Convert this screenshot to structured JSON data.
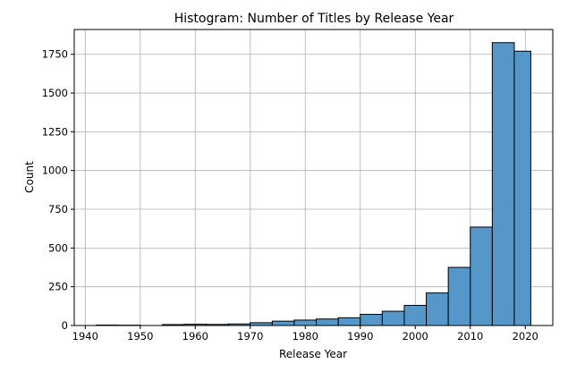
{
  "chart_data": {
    "type": "bar",
    "title": "Histogram: Number of Titles by Release Year",
    "xlabel": "Release Year",
    "ylabel": "Count",
    "xlim": [
      1938,
      2025
    ],
    "ylim": [
      0,
      1910
    ],
    "xticks": [
      1940,
      1950,
      1960,
      1970,
      1980,
      1990,
      2000,
      2010,
      2020
    ],
    "yticks": [
      0,
      250,
      500,
      750,
      1000,
      1250,
      1500,
      1750
    ],
    "grid": true,
    "bar_color": "#5497c8",
    "bins": [
      {
        "start": 1942.0,
        "end": 1946.0,
        "value": 3
      },
      {
        "start": 1946.0,
        "end": 1950.0,
        "value": 2
      },
      {
        "start": 1950.0,
        "end": 1954.0,
        "value": 0
      },
      {
        "start": 1954.0,
        "end": 1958.0,
        "value": 6
      },
      {
        "start": 1958.0,
        "end": 1962.0,
        "value": 8
      },
      {
        "start": 1962.0,
        "end": 1966.0,
        "value": 7
      },
      {
        "start": 1966.0,
        "end": 1970.0,
        "value": 10
      },
      {
        "start": 1970.0,
        "end": 1974.0,
        "value": 18
      },
      {
        "start": 1974.0,
        "end": 1978.0,
        "value": 28
      },
      {
        "start": 1978.0,
        "end": 1982.0,
        "value": 35
      },
      {
        "start": 1982.0,
        "end": 1986.0,
        "value": 42
      },
      {
        "start": 1986.0,
        "end": 1990.0,
        "value": 50
      },
      {
        "start": 1990.0,
        "end": 1994.0,
        "value": 72
      },
      {
        "start": 1994.0,
        "end": 1998.0,
        "value": 92
      },
      {
        "start": 1998.0,
        "end": 2002.0,
        "value": 130
      },
      {
        "start": 2002.0,
        "end": 2006.0,
        "value": 210
      },
      {
        "start": 2006.0,
        "end": 2010.0,
        "value": 375
      },
      {
        "start": 2010.0,
        "end": 2014.0,
        "value": 635
      },
      {
        "start": 2014.0,
        "end": 2018.0,
        "value": 1825
      },
      {
        "start": 2018.0,
        "end": 2021.0,
        "value": 1770
      }
    ]
  }
}
